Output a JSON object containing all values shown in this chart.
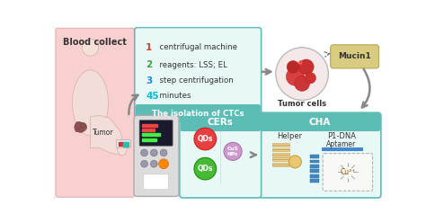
{
  "bg_color": "#f5f5f5",
  "outer_bg": "#ffffff",
  "blood_bg": "#f9d0d0",
  "ctc_box_face": "#e8f8f6",
  "ctc_box_edge": "#5bbdb6",
  "ctc_footer_face": "#5bbdb6",
  "cha_box_face": "#e8f8f6",
  "cha_box_edge": "#5bbdb6",
  "cha_header_face": "#5bbdb6",
  "cers_box_face": "#e8f8f6",
  "cers_box_edge": "#5bbdb6",
  "cers_header_face": "#5bbdb6",
  "mucin_face": "#d9cc80",
  "mucin_edge": "#b8aa55",
  "tumor_circle_face": "#f5e8e8",
  "tumor_circle_edge": "#bbbbbb",
  "blood_title": "Blood collect",
  "tumor_label": "Tumor",
  "step1_num": "1",
  "step1_col": "#e53935",
  "step1_txt": "  centrifugal machine",
  "step2_num": "2",
  "step2_col": "#43a047",
  "step2_txt": "  reagents: LSS; EL",
  "step3_num": "3",
  "step3_col": "#1e88e5",
  "step3_txt": "  step centrifugation",
  "step45_num": "45",
  "step45_col": "#00bcd4",
  "step45_txt": "  minutes",
  "ctc_footer": "The isolation of CTCs",
  "tumor_cells": "Tumor cells",
  "mucin1": "Mucin1",
  "cha": "CHA",
  "helper": "Helper",
  "p1dna": "P1-DNA",
  "aptamer": "Aptamer",
  "cers": "CERs",
  "qds": "QDs",
  "cus": "CuS\nNPs",
  "arrow_color": "#888888",
  "text_dark": "#333333",
  "white": "#ffffff",
  "device_face": "#dcdcdc",
  "device_edge": "#aaaaaa",
  "screen_face": "#1a1a2e",
  "qd_red_face": "#e84040",
  "qd_red_edge": "#cc2020",
  "qd_green_face": "#44bb33",
  "qd_green_edge": "#228811",
  "cus_face": "#cc99cc",
  "cus_edge": "#aa77aa"
}
